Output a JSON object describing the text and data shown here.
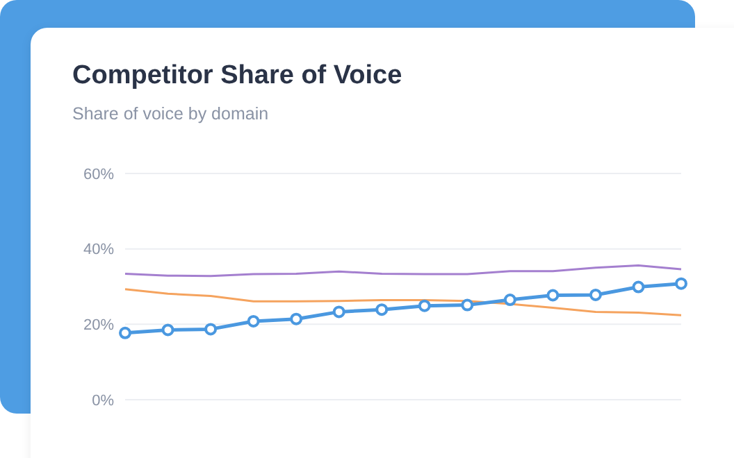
{
  "chart_data": {
    "type": "line",
    "title": "Competitor Share of Voice",
    "subtitle": "Share of voice by domain",
    "categories": [
      null,
      null,
      null,
      null,
      null,
      null,
      null,
      null,
      null,
      null,
      null,
      null,
      null,
      null
    ],
    "series": [
      {
        "color": "#a47fcf",
        "marker": "none",
        "values": [
          33.4,
          32.9,
          32.8,
          33.3,
          33.4,
          34.0,
          33.4,
          33.3,
          33.3,
          34.1,
          34.1,
          35.0,
          35.6,
          34.6
        ]
      },
      {
        "color": "#f5a35e",
        "marker": "none",
        "values": [
          29.3,
          28.1,
          27.5,
          26.1,
          26.1,
          26.2,
          26.4,
          26.4,
          26.2,
          25.4,
          24.4,
          23.3,
          23.1,
          22.4
        ]
      },
      {
        "color": "#4a98e0",
        "marker": "circle",
        "values": [
          17.7,
          18.5,
          18.7,
          20.8,
          21.4,
          23.3,
          23.9,
          24.9,
          25.1,
          26.5,
          27.7,
          27.8,
          29.9,
          30.8
        ]
      }
    ],
    "ylim": [
      0,
      60
    ],
    "yticks": [
      {
        "value": 0,
        "label": "0%"
      },
      {
        "value": 20,
        "label": "20%"
      },
      {
        "value": 40,
        "label": "40%"
      },
      {
        "value": 60,
        "label": "60%"
      }
    ],
    "grid": "y",
    "tick_labels": "y",
    "legend": false
  }
}
